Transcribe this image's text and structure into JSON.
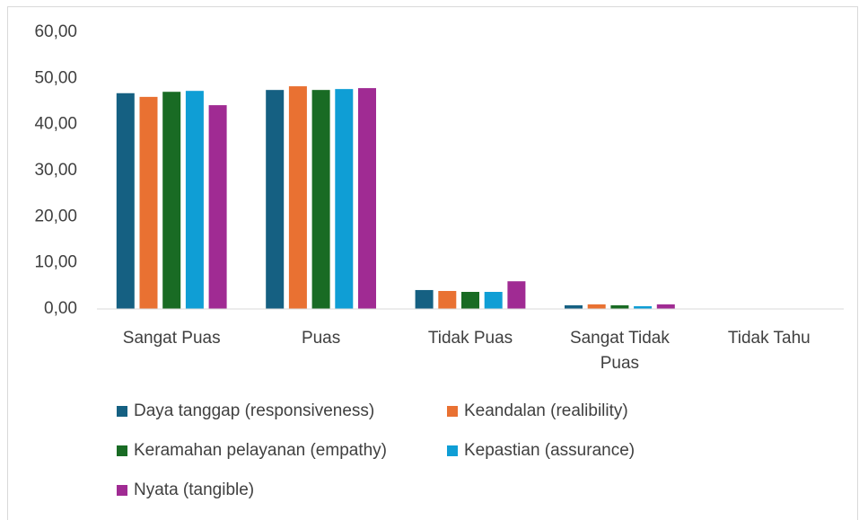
{
  "chart_data": {
    "type": "bar",
    "categories": [
      "Sangat Puas",
      "Puas",
      "Tidak Puas",
      "Sangat Tidak Puas",
      "Tidak Tahu"
    ],
    "series": [
      {
        "name": "Daya tanggap (responsiveness)",
        "color": "#156082",
        "values": [
          46.8,
          47.5,
          4.1,
          0.8,
          0
        ]
      },
      {
        "name": "Keandalan (realibility)",
        "color": "#e97132",
        "values": [
          46.0,
          48.3,
          3.9,
          1.0,
          0
        ]
      },
      {
        "name": "Keramahan pelayanan (empathy)",
        "color": "#196b24",
        "values": [
          47.1,
          47.5,
          3.7,
          0.8,
          0
        ]
      },
      {
        "name": "Kepastian (assurance)",
        "color": "#0f9ed5",
        "values": [
          47.3,
          47.7,
          3.7,
          0.6,
          0
        ]
      },
      {
        "name": "Nyata (tangible)",
        "color": "#a02b93",
        "values": [
          44.2,
          47.9,
          6.0,
          1.0,
          0
        ]
      }
    ],
    "ylim": [
      0,
      60
    ],
    "yticks": [
      {
        "value": 0,
        "label": "0,00"
      },
      {
        "value": 10,
        "label": "10,00"
      },
      {
        "value": 20,
        "label": "20,00"
      },
      {
        "value": 30,
        "label": "30,00"
      },
      {
        "value": 40,
        "label": "40,00"
      },
      {
        "value": 50,
        "label": "50,00"
      },
      {
        "value": 60,
        "label": "60,00"
      }
    ],
    "grid": false,
    "legend": "bottom"
  }
}
